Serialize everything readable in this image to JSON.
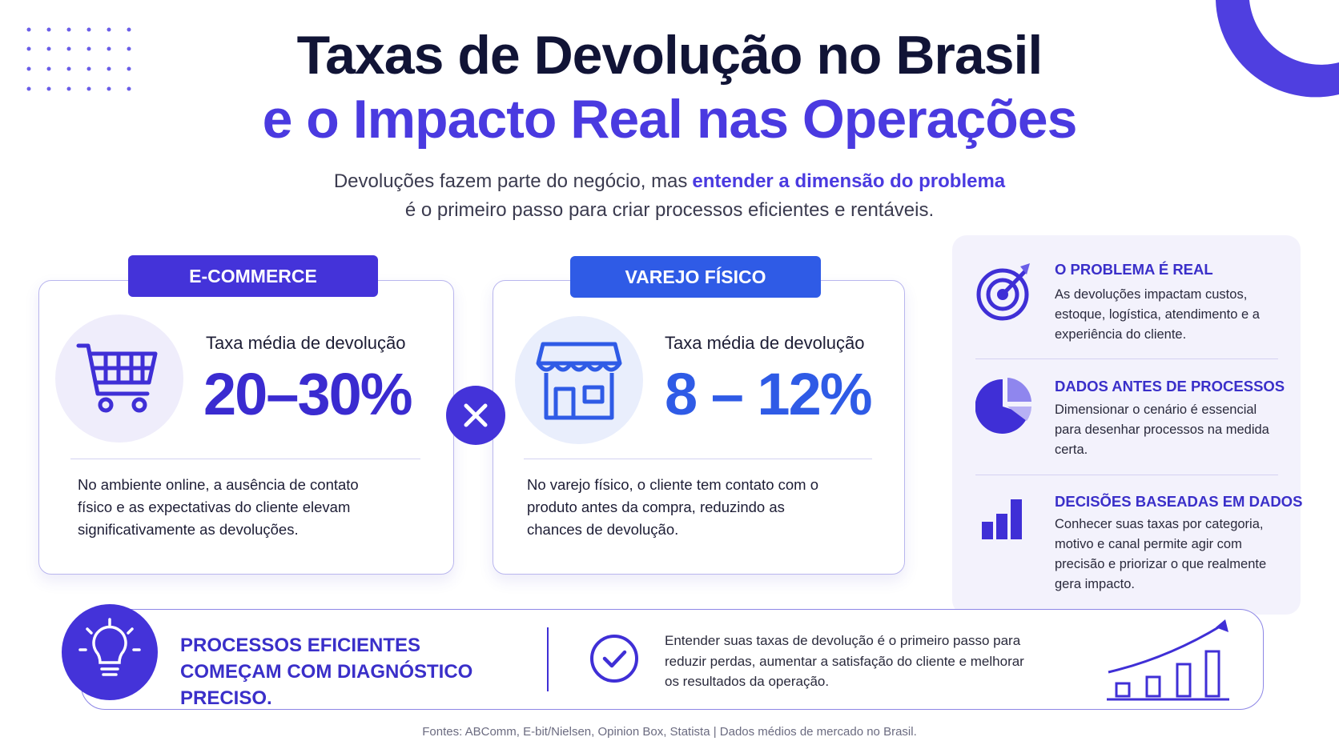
{
  "header": {
    "title_line1": "Taxas de Devolução no Brasil",
    "title_line2": "e o Impacto Real nas Operações",
    "subtitle_start": "Devoluções fazem parte do negócio, mas",
    "subtitle_highlight": "entender a dimensão do problema",
    "subtitle_line2": "é o primeiro passo para criar processos eficientes e rentáveis."
  },
  "cards": [
    {
      "tag": "E-COMMERCE",
      "label": "Taxa média de devolução",
      "rate": "20–30%",
      "description": "No ambiente online, a ausência de contato físico e as expectativas do cliente elevam significativamente as devoluções."
    },
    {
      "tag": "VAREJO FÍSICO",
      "label": "Taxa média de devolução",
      "rate": "8 – 12%",
      "description": "No varejo físico, o cliente tem contato com o produto antes da compra, reduzindo as chances de devolução."
    }
  ],
  "insights": [
    {
      "title": "O PROBLEMA É REAL",
      "text": "As devoluções impactam custos, estoque, logística, atendimento e a experiência do cliente."
    },
    {
      "title": "DADOS ANTES DE PROCESSOS",
      "text": "Dimensionar o cenário é essencial para desenhar processos na medida certa."
    },
    {
      "title": "DECISÕES BASEADAS EM DADOS",
      "text": "Conhecer suas taxas por categoria, motivo e canal permite agir com precisão e priorizar o que realmente gera impacto."
    }
  ],
  "banner": {
    "headline": "PROCESSOS EFICIENTES COMEÇAM COM DIAGNÓSTICO PRECISO.",
    "text": "Entender suas taxas de devolução é o primeiro passo para reduzir perdas, aumentar a satisfação do cliente e melhorar os resultados da operação."
  },
  "footer": "Fontes: ABComm, E-bit/Nielsen, Opinion Box, Statista | Dados médios de mercado no Brasil."
}
